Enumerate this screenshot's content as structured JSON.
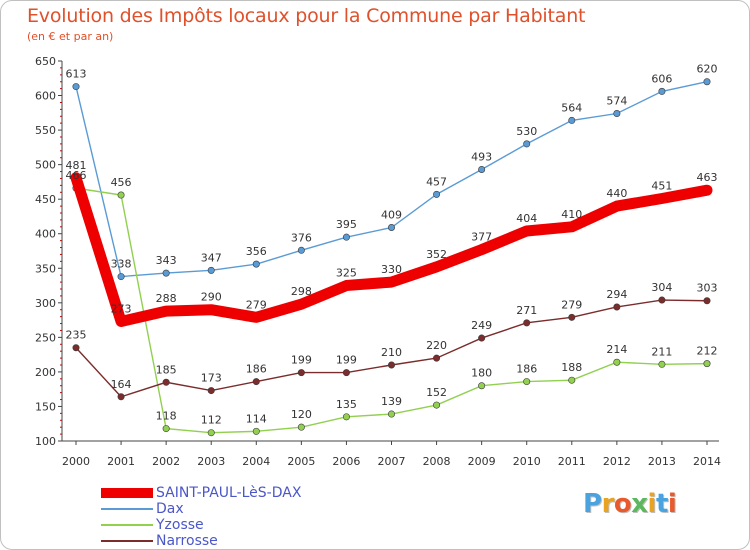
{
  "title": "Evolution des Impôts locaux pour la Commune par Habitant",
  "subtitle": "(en € et par an)",
  "logo_text": "Proxiti",
  "logo_colors": [
    "#4aa3df",
    "#e8a322",
    "#e8592c",
    "#5cb85c",
    "#e8a322",
    "#4aa3df",
    "#e8592c"
  ],
  "chart_data": {
    "type": "line",
    "x": [
      2000,
      2001,
      2002,
      2003,
      2004,
      2005,
      2006,
      2007,
      2008,
      2009,
      2010,
      2011,
      2012,
      2013,
      2014
    ],
    "ylim": [
      100,
      650
    ],
    "yticks": [
      100,
      150,
      200,
      250,
      300,
      350,
      400,
      450,
      500,
      550,
      600,
      650
    ],
    "grid": false,
    "legend_position": "bottom-left",
    "series": [
      {
        "name": "SAINT-PAUL-LèS-DAX",
        "color": "#ee0000",
        "values": [
          481,
          273,
          288,
          290,
          279,
          298,
          325,
          330,
          352,
          377,
          404,
          410,
          440,
          451,
          463
        ]
      },
      {
        "name": "Dax",
        "color": "#5b9bd5",
        "values": [
          613,
          338,
          343,
          347,
          356,
          376,
          395,
          409,
          457,
          493,
          530,
          564,
          574,
          606,
          620
        ]
      },
      {
        "name": "Yzosse",
        "color": "#92d050",
        "values": [
          466,
          456,
          118,
          112,
          114,
          120,
          135,
          139,
          152,
          180,
          186,
          188,
          214,
          211,
          212
        ]
      },
      {
        "name": "Narrosse",
        "color": "#7b2c2c",
        "values": [
          235,
          164,
          185,
          173,
          186,
          199,
          199,
          210,
          220,
          249,
          271,
          279,
          294,
          304,
          303
        ]
      }
    ]
  }
}
